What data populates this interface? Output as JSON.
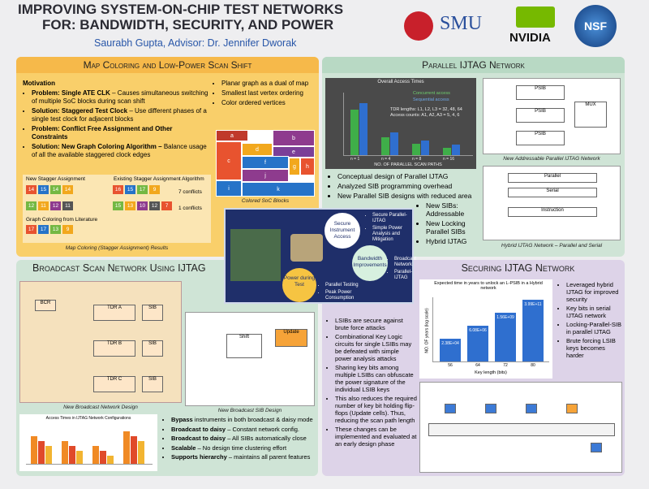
{
  "header": {
    "title_line1": "IMPROVING SYSTEM-ON-CHIP TEST NETWORKS",
    "title_line2": "FOR: BANDWIDTH, SECURITY, AND POWER",
    "authors": "Saurabh Gupta, Advisor: Dr. Jennifer Dworak",
    "logos": [
      "SMU",
      "NVIDIA",
      "NSF"
    ]
  },
  "map_coloring": {
    "title": "Map Coloring and Low-Power Scan Shift",
    "motivation": "Motivation",
    "bullets": [
      {
        "bold": "Problem: Single ATE CLK",
        "text": " – Causes simultaneous switching of multiple SoC blocks during scan shift"
      },
      {
        "bold": "Solution: Staggered Test Clock",
        "text": " – Use different phases of a single test clock for adjacent blocks"
      },
      {
        "bold": "Problem: Conflict Free Assignment and Other Constraints",
        "text": ""
      },
      {
        "bold": "Solution: New Graph Coloring Algorithm –",
        "text": " Balance usage of all the available staggered clock edges"
      }
    ],
    "right_bullets": [
      "Planar graph as a dual of map",
      "Smallest last vertex ordering",
      "Color ordered vertices"
    ],
    "blocks": [
      "a",
      "b",
      "c",
      "d",
      "e",
      "f",
      "g",
      "h",
      "i",
      "j",
      "k"
    ],
    "soc_caption": "Colored SoC Blocks",
    "new_label": "New Stagger Assignment",
    "existing_label": "Existing Stagger Assignment Algorithm",
    "literature_label": "Graph Coloring from Literature",
    "new_grid": [
      [
        "14",
        "15",
        "14",
        "14"
      ],
      [
        "12",
        "11",
        "12",
        "11"
      ]
    ],
    "existing_grid": [
      [
        "16",
        "15",
        "17",
        "9"
      ],
      [
        "15",
        "13",
        "10",
        "12",
        "7"
      ]
    ],
    "literature_grid": [
      [
        "17",
        "17",
        "13",
        "9"
      ]
    ],
    "conflicts": [
      "7 conflicts",
      "1 conflicts"
    ],
    "caption": "Map Coloring (Stagger Assignment) Results"
  },
  "parallel": {
    "title": "Parallel IJTAG Network",
    "chart_title": "Overall Access Times",
    "legend": [
      "Concurrent access",
      "Sequential access"
    ],
    "tdr_note": "TDR lengths: L1, L2, L3 = 32, 48, 64",
    "access_note": "Access counts: A1, A2, A3 = 5, 4, 6",
    "categories": [
      "n = 1",
      "n = 4",
      "n = 8",
      "n = 16"
    ],
    "x_label": "NO. OF PARALLEL SCAN PATHS",
    "diagram_caption": "New Addressable Parallel IJTAG Network",
    "bullets": [
      "Conceptual design of Parallel IJTAG",
      "Analyzed SIB programming overhead",
      "New Parallel SIB designs with reduced area"
    ],
    "sub_bullets": [
      "New SIBs: Addressable",
      "New Locking Parallel SIBs",
      "Hybrid IJTAG"
    ],
    "hybrid_caption": "Hybrid IJTAG Network – Parallel and Serial"
  },
  "center": {
    "nodes": [
      "Secure Instrument Access",
      "Bandwidth Improvements",
      "Power during Test"
    ],
    "secure_items": [
      "Secure Parallel-IJTAG",
      "Simple Power Analysis and Mitigation"
    ],
    "bandwidth_items": [
      "Broadcast Network",
      "Parallel-IJTAG"
    ],
    "power_items": [
      "Parallel Testing",
      "Peak Power Consumption"
    ]
  },
  "broadcast": {
    "title": "Broadcast Scan Network Using IJTAG",
    "diagram_caption": "New Broadcast Network Design",
    "sib_caption": "New Broadcast SIB Design",
    "sib_label": "Update",
    "chart_title": "Access Times in IJTAG Network Configurations",
    "bullets": [
      {
        "bold": "Bypass",
        "text": " instruments in both broadcast & daisy mode"
      },
      {
        "bold": "Broadcast to daisy",
        "text": " – Constant network config."
      },
      {
        "bold": "Broadcast to daisy",
        "text": " – All SIBs automatically close"
      },
      {
        "bold": "Scalable",
        "text": " – No design time clustering effort"
      },
      {
        "bold": "Supports hierarchy",
        "text": " – maintains all parent features"
      }
    ]
  },
  "securing": {
    "title": "Securing IJTAG Network",
    "chart_title": "Expected time in years to unlock an L-PSIB in a Hybrid network",
    "y_label": "NO. OF years (log scale)",
    "x_label": "Key length (bits)",
    "bars": [
      {
        "label": "2.38E+04",
        "key": "56"
      },
      {
        "label": "6.08E+06",
        "key": "64"
      },
      {
        "label": "1.56E+09",
        "key": "72"
      },
      {
        "label": "3.99E+11",
        "key": "80"
      }
    ],
    "right_bullets": [
      "Leveraged hybrid IJTAG for improved security",
      "Key bits in serial IJTAG network",
      "Locking-Parallel-SIB in parallel IJTAG",
      "Brute forcing LSIB keys becomes harder"
    ],
    "left_bullets": [
      "LSIBs are secure against brute force attacks",
      "Combinational Key Logic circuits for single LSIBs may be defeated with simple power analysis attacks",
      "Sharing key bits among multiple LSIBs can obfuscate the power signature of the individual LSIB keys",
      "This also reduces the required number of key bit holding flip-flops (Update cells). Thus, reducing the scan path length",
      "These changes can be implemented and evaluated at an early design phase"
    ]
  }
}
